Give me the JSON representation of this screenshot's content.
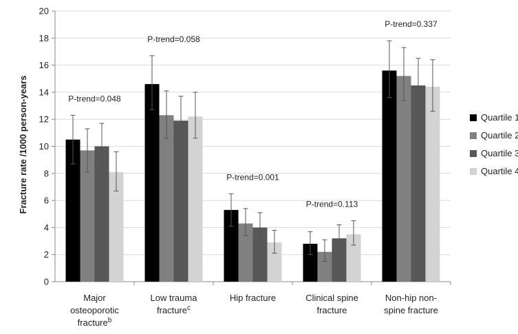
{
  "chart_data": {
    "type": "bar",
    "title": "",
    "xlabel": "",
    "ylabel": "Fracture  rate /1000 person-years",
    "ylim": [
      0,
      20
    ],
    "yticks": [
      "0",
      "2",
      "4",
      "6",
      "8",
      "10",
      "12",
      "14",
      "16",
      "18",
      "20"
    ],
    "grid": true,
    "legend_position": "right",
    "categories": [
      {
        "line1": "Major",
        "line2": "osteoporotic",
        "line3": "fracture",
        "sup": "b"
      },
      {
        "line1": "Low trauma",
        "line2": "fracture",
        "line3": "",
        "sup": "c"
      },
      {
        "line1": "Hip fracture",
        "line2": "",
        "line3": "",
        "sup": ""
      },
      {
        "line1": "Clinical spine",
        "line2": "fracture",
        "line3": "",
        "sup": ""
      },
      {
        "line1": "Non-hip non-",
        "line2": "spine fracture",
        "line3": "",
        "sup": ""
      }
    ],
    "series": [
      {
        "name": "Quartile 1",
        "color": "#000000",
        "values": [
          10.5,
          14.6,
          5.3,
          2.8,
          15.6
        ],
        "err_low": [
          8.7,
          12.7,
          4.1,
          2.0,
          13.6
        ],
        "err_high": [
          12.3,
          16.7,
          6.5,
          3.7,
          17.8
        ]
      },
      {
        "name": "Quartile 2",
        "color": "#808080",
        "values": [
          9.7,
          12.3,
          4.3,
          2.2,
          15.2
        ],
        "err_low": [
          8.1,
          10.6,
          3.4,
          1.5,
          13.4
        ],
        "err_high": [
          11.3,
          14.1,
          5.4,
          3.1,
          17.3
        ]
      },
      {
        "name": "Quartile 3",
        "color": "#575757",
        "values": [
          10.0,
          11.9,
          4.0,
          3.2,
          14.5
        ],
        "err_low": [
          8.3,
          10.1,
          3.0,
          2.4,
          12.6
        ],
        "err_high": [
          11.7,
          13.7,
          5.1,
          4.2,
          16.5
        ]
      },
      {
        "name": "Quartile 4",
        "color": "#d3d3d3",
        "values": [
          8.1,
          12.2,
          2.9,
          3.5,
          14.4
        ],
        "err_low": [
          6.7,
          10.6,
          2.1,
          2.7,
          12.6
        ],
        "err_high": [
          9.6,
          14.0,
          3.8,
          4.5,
          16.4
        ]
      }
    ],
    "annotations": [
      "P-trend=0.048",
      "P-trend=0.058",
      "P-trend=0.001",
      "P-trend=0.113",
      "P-trend=0.337"
    ]
  }
}
